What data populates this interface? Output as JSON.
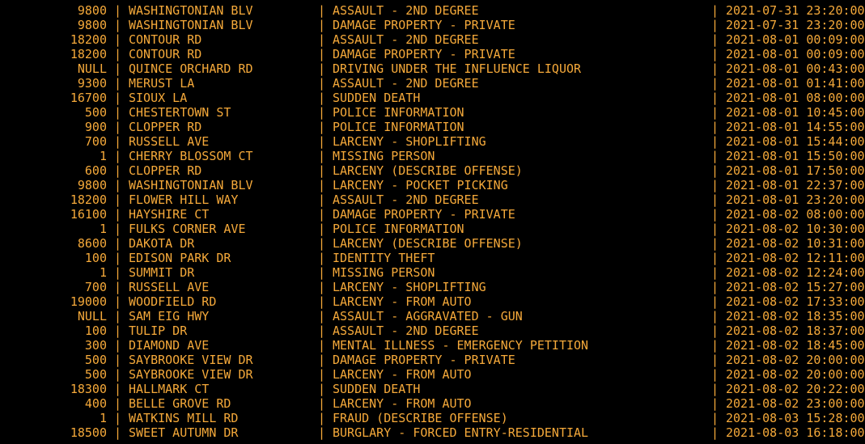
{
  "theme": {
    "text_color": "#f5a93a",
    "background": "#000000"
  },
  "separator": "|",
  "rows": [
    [
      "9800",
      "WASHINGTONIAN BLV",
      "ASSAULT - 2ND DEGREE",
      "2021-07-31 23:20:00"
    ],
    [
      "9800",
      "WASHINGTONIAN BLV",
      "DAMAGE PROPERTY - PRIVATE",
      "2021-07-31 23:20:00"
    ],
    [
      "18200",
      "CONTOUR RD",
      "ASSAULT - 2ND DEGREE",
      "2021-08-01 00:09:00"
    ],
    [
      "18200",
      "CONTOUR RD",
      "DAMAGE PROPERTY - PRIVATE",
      "2021-08-01 00:09:00"
    ],
    [
      "NULL",
      "QUINCE ORCHARD RD",
      "DRIVING UNDER THE INFLUENCE LIQUOR",
      "2021-08-01 00:43:00"
    ],
    [
      "9300",
      "MERUST LA",
      "ASSAULT - 2ND DEGREE",
      "2021-08-01 01:41:00"
    ],
    [
      "16700",
      "SIOUX LA",
      "SUDDEN DEATH",
      "2021-08-01 08:00:00"
    ],
    [
      "500",
      "CHESTERTOWN ST",
      "POLICE INFORMATION",
      "2021-08-01 10:45:00"
    ],
    [
      "900",
      "CLOPPER RD",
      "POLICE INFORMATION",
      "2021-08-01 14:55:00"
    ],
    [
      "700",
      "RUSSELL AVE",
      "LARCENY - SHOPLIFTING",
      "2021-08-01 15:44:00"
    ],
    [
      "1",
      "CHERRY BLOSSOM CT",
      "MISSING PERSON",
      "2021-08-01 15:50:00"
    ],
    [
      "600",
      "CLOPPER RD",
      "LARCENY (DESCRIBE OFFENSE)",
      "2021-08-01 17:50:00"
    ],
    [
      "9800",
      "WASHINGTONIAN BLV",
      "LARCENY - POCKET PICKING",
      "2021-08-01 22:37:00"
    ],
    [
      "18200",
      "FLOWER HILL WAY",
      "ASSAULT - 2ND DEGREE",
      "2021-08-01 23:20:00"
    ],
    [
      "16100",
      "HAYSHIRE CT",
      "DAMAGE PROPERTY - PRIVATE",
      "2021-08-02 08:00:00"
    ],
    [
      "1",
      "FULKS CORNER AVE",
      "POLICE INFORMATION",
      "2021-08-02 10:30:00"
    ],
    [
      "8600",
      "DAKOTA DR",
      "LARCENY (DESCRIBE OFFENSE)",
      "2021-08-02 10:31:00"
    ],
    [
      "100",
      "EDISON PARK DR",
      "IDENTITY THEFT",
      "2021-08-02 12:11:00"
    ],
    [
      "1",
      "SUMMIT DR",
      "MISSING PERSON",
      "2021-08-02 12:24:00"
    ],
    [
      "700",
      "RUSSELL AVE",
      "LARCENY - SHOPLIFTING",
      "2021-08-02 15:27:00"
    ],
    [
      "19000",
      "WOODFIELD RD",
      "LARCENY - FROM AUTO",
      "2021-08-02 17:33:00"
    ],
    [
      "NULL",
      "SAM EIG HWY",
      "ASSAULT - AGGRAVATED - GUN",
      "2021-08-02 18:35:00"
    ],
    [
      "100",
      "TULIP DR",
      "ASSAULT - 2ND DEGREE",
      "2021-08-02 18:37:00"
    ],
    [
      "300",
      "DIAMOND AVE",
      "MENTAL ILLNESS - EMERGENCY PETITION",
      "2021-08-02 18:45:00"
    ],
    [
      "500",
      "SAYBROOKE VIEW DR",
      "DAMAGE PROPERTY - PRIVATE",
      "2021-08-02 20:00:00"
    ],
    [
      "500",
      "SAYBROOKE VIEW DR",
      "LARCENY - FROM AUTO",
      "2021-08-02 20:00:00"
    ],
    [
      "18300",
      "HALLMARK CT",
      "SUDDEN DEATH",
      "2021-08-02 20:22:00"
    ],
    [
      "400",
      "BELLE GROVE RD",
      "LARCENY - FROM AUTO",
      "2021-08-02 23:00:00"
    ],
    [
      "1",
      "WATKINS MILL RD",
      "FRAUD (DESCRIBE OFFENSE)",
      "2021-08-03 15:28:00"
    ],
    [
      "18500",
      "SWEET AUTUMN DR",
      "BURGLARY - FORCED ENTRY-RESIDENTIAL",
      "2021-08-03 16:18:00"
    ]
  ]
}
